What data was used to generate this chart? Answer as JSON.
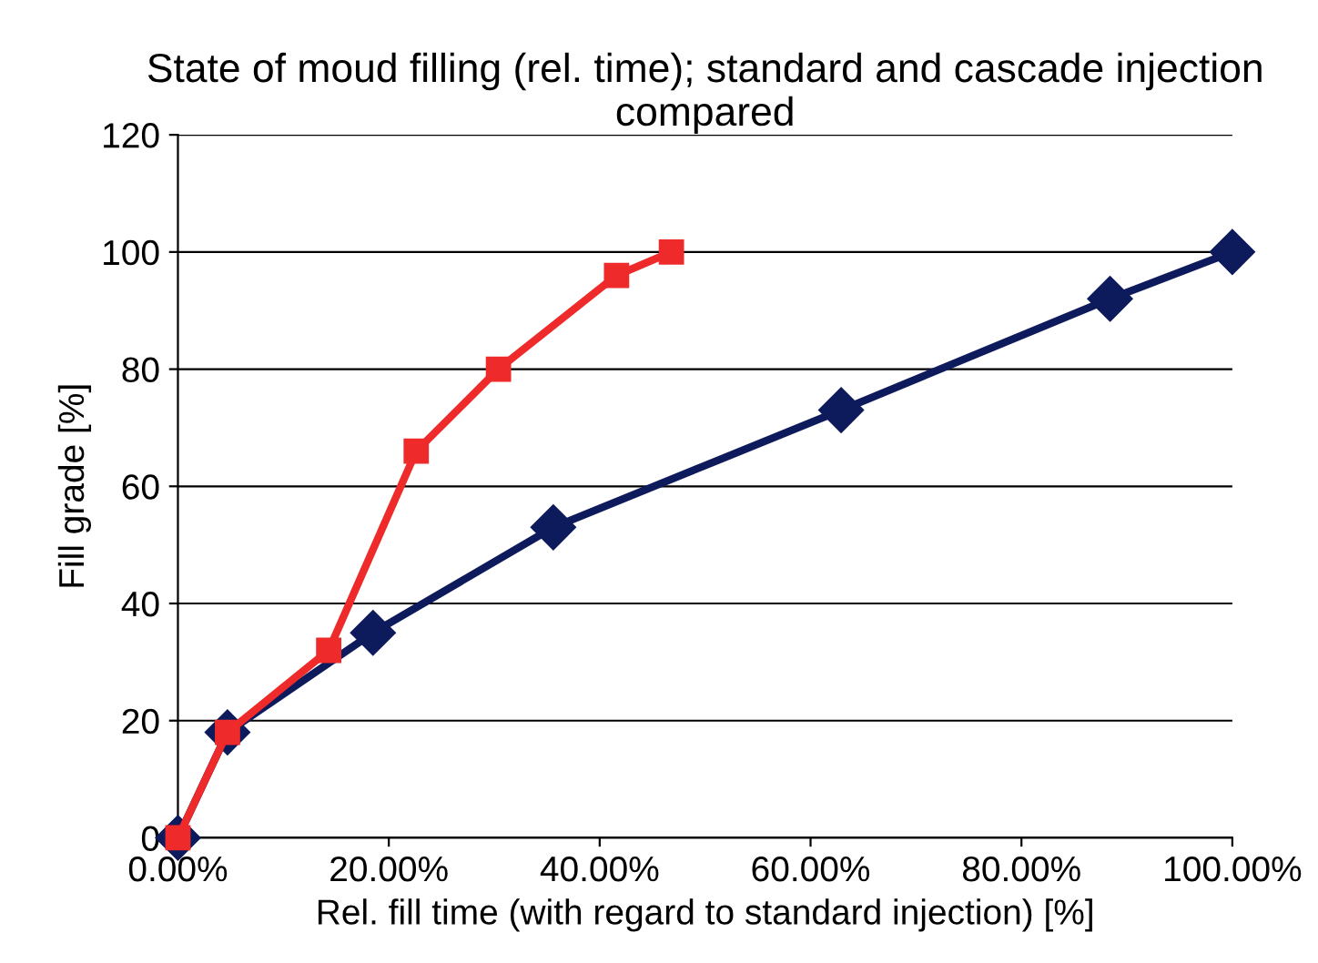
{
  "chart_data": {
    "type": "line",
    "title": "State of moud filling (rel. time); standard and cascade injection compared",
    "xlabel": "Rel. fill time (with regard to standard injection) [%]",
    "ylabel": "Fill grade [%]",
    "series": [
      {
        "color": "#0d1a5c",
        "marker": "diamond",
        "x": [
          0,
          4.7,
          18.5,
          35.6,
          62.9,
          88.4,
          100
        ],
        "values": [
          0,
          18,
          35,
          53,
          73,
          92,
          100
        ]
      },
      {
        "color": "#ee2a2a",
        "marker": "square",
        "x": [
          0,
          4.7,
          14.3,
          22.6,
          30.4,
          41.6,
          46.8
        ],
        "values": [
          0,
          18,
          32,
          66,
          80,
          96,
          100
        ]
      }
    ],
    "xlim": [
      0,
      100
    ],
    "xticks": [
      {
        "value": 0,
        "label": "0.00%"
      },
      {
        "value": 20,
        "label": "20.00%"
      },
      {
        "value": 40,
        "label": "40.00%"
      },
      {
        "value": 60,
        "label": "60.00%"
      },
      {
        "value": 80,
        "label": "80.00%"
      },
      {
        "value": 100,
        "label": "100.00%"
      }
    ],
    "ylim": [
      0,
      120
    ],
    "yticks": [
      0,
      20,
      40,
      60,
      80,
      100,
      120
    ],
    "grid": "y",
    "legend": false,
    "line_style": "solid"
  }
}
